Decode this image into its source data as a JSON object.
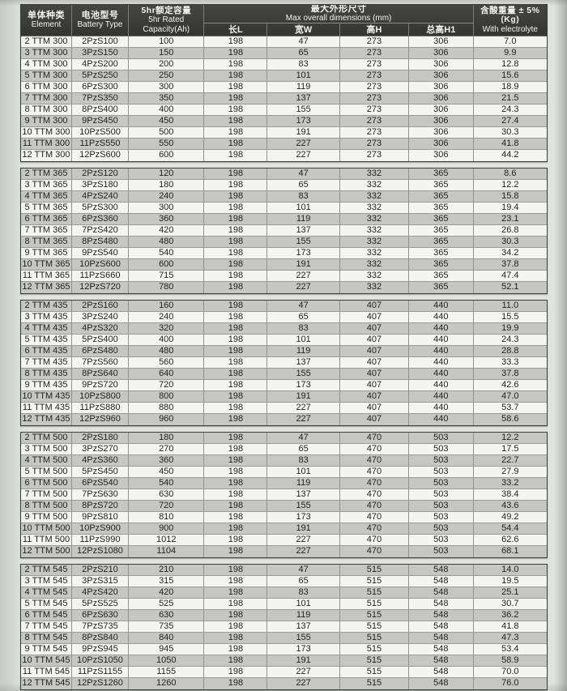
{
  "colors": {
    "page_bg": "#e0e3df",
    "header_bg": "#3c3c3a",
    "header_text": "#f2f2f0",
    "row_light": "#f4f4f2",
    "row_shaded": "#c6c7c5",
    "border_dark": "#3c3c3a",
    "text": "#1f1f1d"
  },
  "header": {
    "element": {
      "zh": "单体种类",
      "en": "Element"
    },
    "battery_type": {
      "zh": "电池型号",
      "en": "Battery Type"
    },
    "capacity": {
      "zh": "5hr额定容量",
      "en1": "5hr Rated",
      "en2": "Capacity(Ah)"
    },
    "dimensions": {
      "zh": "最大外形尺寸",
      "en": "Max overall dimensions (mm)",
      "sub": [
        "长L",
        "宽W",
        "高H",
        "总高H1"
      ]
    },
    "weight": {
      "zh": "含酸重量 ± 5%(Kg)",
      "en": "With electrolyte"
    }
  },
  "column_keys": [
    "element",
    "battery-type",
    "capacity",
    "length-l",
    "width-w",
    "height-h",
    "total-height-h1",
    "weight"
  ],
  "groups": [
    {
      "name": "TTM 300",
      "first_row_shaded": false,
      "rows": [
        [
          "2 TTM 300",
          "2PzS100",
          "100",
          "198",
          "47",
          "273",
          "306",
          "7.0"
        ],
        [
          "3 TTM 300",
          "3PzS150",
          "150",
          "198",
          "65",
          "273",
          "306",
          "9.9"
        ],
        [
          "4 TTM 300",
          "4PzS200",
          "200",
          "198",
          "83",
          "273",
          "306",
          "12.8"
        ],
        [
          "5 TTM 300",
          "5PzS250",
          "250",
          "198",
          "101",
          "273",
          "306",
          "15.6"
        ],
        [
          "6 TTM 300",
          "6PzS300",
          "300",
          "198",
          "119",
          "273",
          "306",
          "18.9"
        ],
        [
          "7 TTM 300",
          "7PzS350",
          "350",
          "198",
          "137",
          "273",
          "306",
          "21.5"
        ],
        [
          "8 TTM 300",
          "8PzS400",
          "400",
          "198",
          "155",
          "273",
          "306",
          "24.3"
        ],
        [
          "9 TTM 300",
          "9PzS450",
          "450",
          "198",
          "173",
          "273",
          "306",
          "27.4"
        ],
        [
          "10 TTM 300",
          "10PzS500",
          "500",
          "198",
          "191",
          "273",
          "306",
          "30.3"
        ],
        [
          "11 TTM 300",
          "11PzS550",
          "550",
          "198",
          "227",
          "273",
          "306",
          "41.8"
        ],
        [
          "12 TTM 300",
          "12PzS600",
          "600",
          "198",
          "227",
          "273",
          "306",
          "44.2"
        ]
      ]
    },
    {
      "name": "TTM 365",
      "first_row_shaded": true,
      "rows": [
        [
          "2 TTM 365",
          "2PzS120",
          "120",
          "198",
          "47",
          "332",
          "365",
          "8.6"
        ],
        [
          "3 TTM 365",
          "3PzS180",
          "180",
          "198",
          "65",
          "332",
          "365",
          "12.2"
        ],
        [
          "4 TTM 365",
          "4PzS240",
          "240",
          "198",
          "83",
          "332",
          "365",
          "15.8"
        ],
        [
          "5 TTM 365",
          "5PzS300",
          "300",
          "198",
          "101",
          "332",
          "365",
          "19.4"
        ],
        [
          "6 TTM 365",
          "6PzS360",
          "360",
          "198",
          "119",
          "332",
          "365",
          "23.1"
        ],
        [
          "7 TTM 365",
          "7PzS420",
          "420",
          "198",
          "137",
          "332",
          "365",
          "26.8"
        ],
        [
          "8 TTM 365",
          "8PzS480",
          "480",
          "198",
          "155",
          "332",
          "365",
          "30.3"
        ],
        [
          "9 TTM 365",
          "9PzS540",
          "540",
          "198",
          "173",
          "332",
          "365",
          "34.2"
        ],
        [
          "10 TTM 365",
          "10PzS600",
          "600",
          "198",
          "191",
          "332",
          "365",
          "37.8"
        ],
        [
          "11 TTM 365",
          "11PzS660",
          "715",
          "198",
          "227",
          "332",
          "365",
          "47.4"
        ],
        [
          "12 TTM 365",
          "12PzS720",
          "780",
          "198",
          "227",
          "332",
          "365",
          "52.1"
        ]
      ]
    },
    {
      "name": "TTM 435",
      "first_row_shaded": true,
      "rows": [
        [
          "2 TTM 435",
          "2PzS160",
          "160",
          "198",
          "47",
          "407",
          "440",
          "11.0"
        ],
        [
          "3 TTM 435",
          "3PzS240",
          "240",
          "198",
          "65",
          "407",
          "440",
          "15.5"
        ],
        [
          "4 TTM 435",
          "4PzS320",
          "320",
          "198",
          "83",
          "407",
          "440",
          "19.9"
        ],
        [
          "5 TTM 435",
          "5PzS400",
          "400",
          "198",
          "101",
          "407",
          "440",
          "24.3"
        ],
        [
          "6 TTM 435",
          "6PzS480",
          "480",
          "198",
          "119",
          "407",
          "440",
          "28.8"
        ],
        [
          "7 TTM 435",
          "7PzS560",
          "560",
          "198",
          "137",
          "407",
          "440",
          "33.3"
        ],
        [
          "8 TTM 435",
          "8PzS640",
          "640",
          "198",
          "155",
          "407",
          "440",
          "37.8"
        ],
        [
          "9 TTM 435",
          "9PzS720",
          "720",
          "198",
          "173",
          "407",
          "440",
          "42.6"
        ],
        [
          "10 TTM 435",
          "10PzS800",
          "800",
          "198",
          "191",
          "407",
          "440",
          "47.0"
        ],
        [
          "11 TTM 435",
          "11PzS880",
          "880",
          "198",
          "227",
          "407",
          "440",
          "53.7"
        ],
        [
          "12 TTM 435",
          "12PzS960",
          "960",
          "198",
          "227",
          "407",
          "440",
          "58.6"
        ]
      ]
    },
    {
      "name": "TTM 500",
      "first_row_shaded": true,
      "rows": [
        [
          "2 TTM 500",
          "2PzS180",
          "180",
          "198",
          "47",
          "470",
          "503",
          "12.2"
        ],
        [
          "3 TTM 500",
          "3PzS270",
          "270",
          "198",
          "65",
          "470",
          "503",
          "17.5"
        ],
        [
          "4 TTM 500",
          "4PzS360",
          "360",
          "198",
          "83",
          "470",
          "503",
          "22.7"
        ],
        [
          "5 TTM 500",
          "5PzS450",
          "450",
          "198",
          "101",
          "470",
          "503",
          "27.9"
        ],
        [
          "6 TTM 500",
          "6PzS540",
          "540",
          "198",
          "119",
          "470",
          "503",
          "33.2"
        ],
        [
          "7 TTM 500",
          "7PzS630",
          "630",
          "198",
          "137",
          "470",
          "503",
          "38.4"
        ],
        [
          "8 TTM 500",
          "8PzS720",
          "720",
          "198",
          "155",
          "470",
          "503",
          "43.6"
        ],
        [
          "9 TTM 500",
          "9PzS810",
          "810",
          "198",
          "173",
          "470",
          "503",
          "49.2"
        ],
        [
          "10 TTM 500",
          "10PzS900",
          "900",
          "198",
          "191",
          "470",
          "503",
          "54.4"
        ],
        [
          "11 TTM 500",
          "11PzS990",
          "1012",
          "198",
          "227",
          "470",
          "503",
          "62.6"
        ],
        [
          "12 TTM 500",
          "12PzS1080",
          "1104",
          "198",
          "227",
          "470",
          "503",
          "68.1"
        ]
      ]
    },
    {
      "name": "TTM 545",
      "first_row_shaded": true,
      "rows": [
        [
          "2 TTM 545",
          "2PzS210",
          "210",
          "198",
          "47",
          "515",
          "548",
          "14.0"
        ],
        [
          "3 TTM 545",
          "3PzS315",
          "315",
          "198",
          "65",
          "515",
          "548",
          "19.5"
        ],
        [
          "4 TTM 545",
          "4PzS420",
          "420",
          "198",
          "83",
          "515",
          "548",
          "25.1"
        ],
        [
          "5 TTM 545",
          "5PzS525",
          "525",
          "198",
          "101",
          "515",
          "548",
          "30.7"
        ],
        [
          "6 TTM 545",
          "6PzS630",
          "630",
          "198",
          "119",
          "515",
          "548",
          "36.2"
        ],
        [
          "7 TTM 545",
          "7PzS735",
          "735",
          "198",
          "137",
          "515",
          "548",
          "41.8"
        ],
        [
          "8 TTM 545",
          "8PzS840",
          "840",
          "198",
          "155",
          "515",
          "548",
          "47.3"
        ],
        [
          "9 TTM 545",
          "9PzS945",
          "945",
          "198",
          "173",
          "515",
          "548",
          "53.4"
        ],
        [
          "10 TTM 545",
          "10PzS1050",
          "1050",
          "198",
          "191",
          "515",
          "548",
          "58.9"
        ],
        [
          "11 TTM 545",
          "11PzS1155",
          "1155",
          "198",
          "227",
          "515",
          "548",
          "70.0"
        ],
        [
          "12 TTM 545",
          "12PzS1260",
          "1260",
          "198",
          "227",
          "515",
          "548",
          "76.0"
        ]
      ]
    }
  ]
}
